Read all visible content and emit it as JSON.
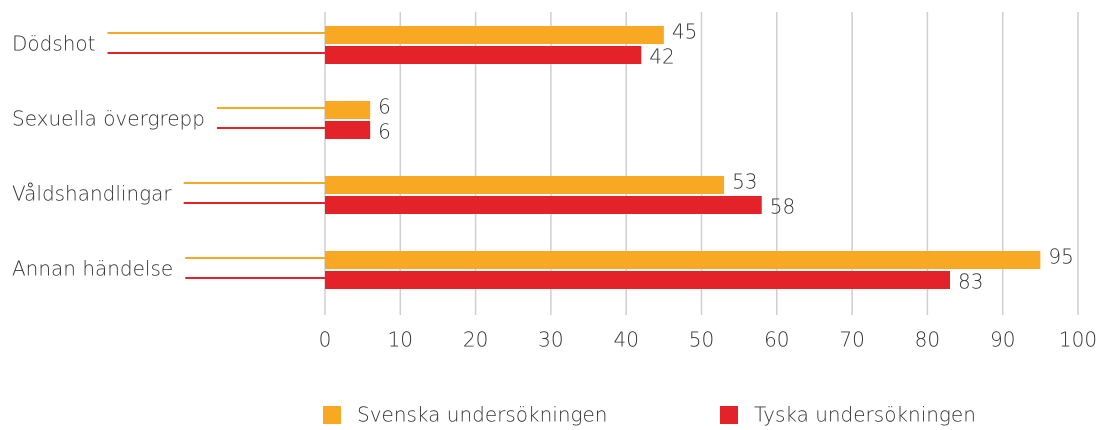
{
  "chart_data": {
    "type": "bar",
    "orientation": "horizontal",
    "categories": [
      "Dödshot",
      "Sexuella övergrepp",
      "Våldshandlingar",
      "Annan händelse"
    ],
    "series": [
      {
        "name": "Svenska undersökningen",
        "color": "#f8a823",
        "values": [
          45,
          6,
          53,
          95
        ]
      },
      {
        "name": "Tyska undersökningen",
        "color": "#e3222a",
        "values": [
          42,
          6,
          58,
          83
        ]
      }
    ],
    "xlim": [
      0,
      100
    ],
    "xticks": [
      0,
      10,
      20,
      30,
      40,
      50,
      60,
      70,
      80,
      90,
      100
    ],
    "grid": true
  }
}
